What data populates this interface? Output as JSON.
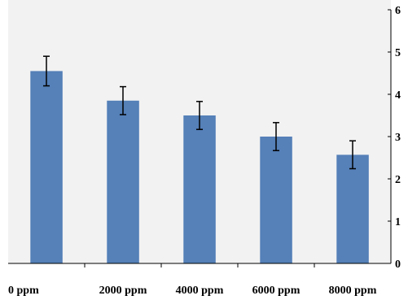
{
  "chart_data": {
    "type": "bar",
    "categories": [
      "0 ppm",
      "2000 ppm",
      "4000 ppm",
      "6000 ppm",
      "8000 ppm"
    ],
    "series": [
      {
        "values": [
          4.55,
          3.85,
          3.5,
          3.0,
          2.57
        ],
        "errors": [
          0.35,
          0.33,
          0.33,
          0.33,
          0.33
        ],
        "color": "#5580b8"
      }
    ],
    "title": "",
    "xlabel": "",
    "ylabel": "",
    "ylim": [
      0,
      6
    ],
    "yticks": [
      "0",
      "1",
      "2",
      "3",
      "4",
      "5",
      "6"
    ],
    "y_axis_side": "right",
    "grid": false,
    "background": "#f2f2f2"
  }
}
